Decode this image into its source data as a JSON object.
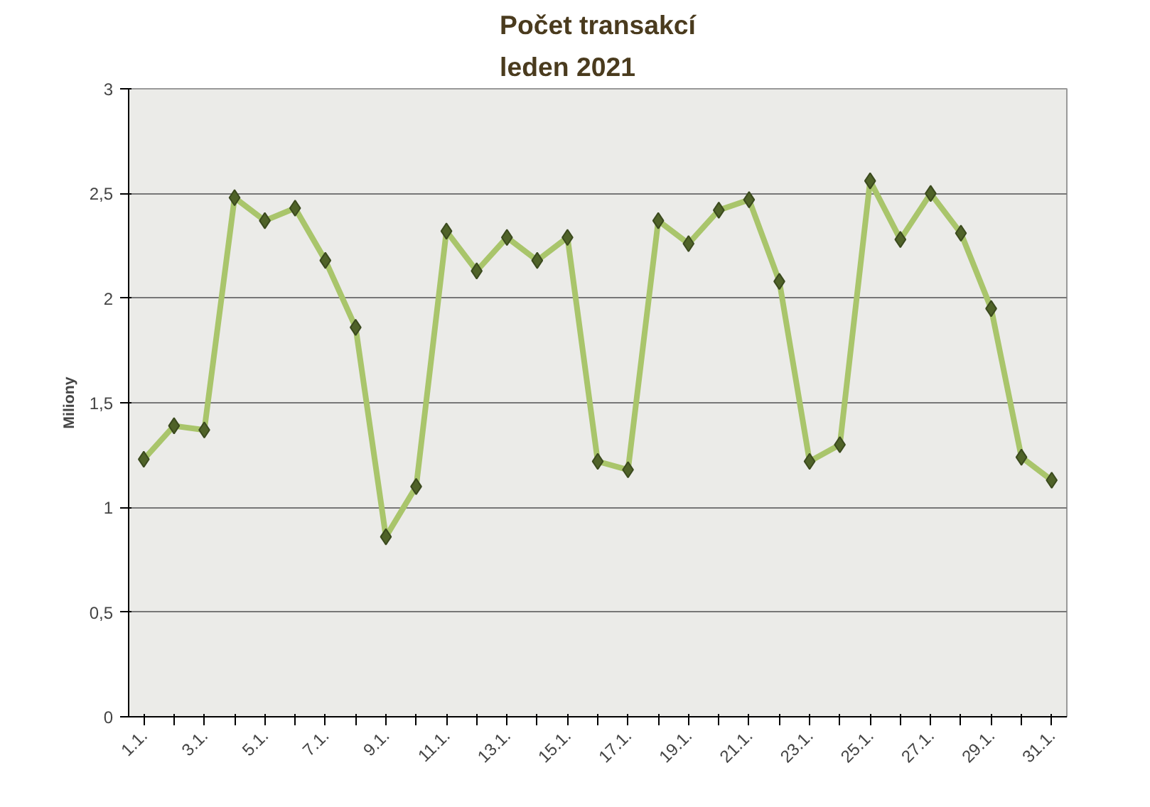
{
  "chart_data": {
    "type": "line",
    "title": "Počet transakcí\nleden 2021",
    "ylabel": "Miliony",
    "categories": [
      "1.1.",
      null,
      "3.1.",
      null,
      "5.1.",
      null,
      "7.1.",
      null,
      "9.1.",
      null,
      "11.1.",
      null,
      "13.1.",
      null,
      "15.1.",
      null,
      "17.1.",
      null,
      "19.1.",
      null,
      "21.1.",
      null,
      "23.1.",
      null,
      "25.1.",
      null,
      "27.1.",
      null,
      "29.1.",
      null,
      "31.1."
    ],
    "series": [
      {
        "color": "#a9c56b",
        "values": [
          1.23,
          1.39,
          1.37,
          2.48,
          2.37,
          2.43,
          2.18,
          1.86,
          0.86,
          1.1,
          2.32,
          2.13,
          2.29,
          2.18,
          2.29,
          1.22,
          1.18,
          2.37,
          2.26,
          2.42,
          2.47,
          2.08,
          1.22,
          1.3,
          2.56,
          2.28,
          2.5,
          2.31,
          1.95,
          1.24,
          1.13
        ]
      }
    ],
    "ylim": [
      0,
      3
    ],
    "yticks": [
      0,
      {
        "value": 0.5,
        "label": "0,5"
      },
      1,
      {
        "value": 1.5,
        "label": "1,5"
      },
      2,
      {
        "value": 2.5,
        "label": "2,5"
      },
      3
    ],
    "grid": "y",
    "marker": "diamond",
    "line_style": "solid"
  }
}
